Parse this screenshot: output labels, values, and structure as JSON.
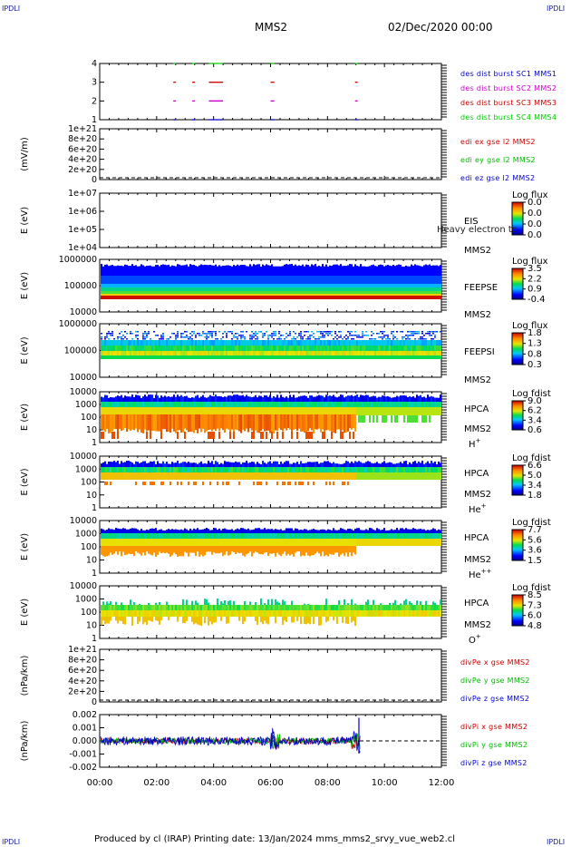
{
  "header": {
    "corner_tl": "IPDLI",
    "corner_tr": "IPDLI",
    "corner_bl": "IPDLI",
    "corner_br": "IPDLI",
    "spacecraft": "MMS2",
    "datetime": "02/Dec/2020 00:00"
  },
  "footer": {
    "text": "Produced by cl (IRAP)   Printing date: 13/Jan/2024   mms_mms2_srvy_vue_web2.cl"
  },
  "colors": {
    "mms1": "#0000cc",
    "mms2": "#cc00cc",
    "mms3": "#cc0000",
    "mms4": "#00cc00",
    "x": "#cc0000",
    "y": "#00bb00",
    "z": "#0000cc"
  },
  "chart_data": [
    {
      "id": "burst",
      "type": "scatter",
      "ylabel": "",
      "yticks": [
        "1",
        "2",
        "3",
        "4"
      ],
      "xlim": [
        "00:00",
        "12:00"
      ],
      "legend": [
        {
          "text": "des dist burst SC1 MMS1",
          "color": "#0000cc"
        },
        {
          "text": "des dist burst SC2 MMS2",
          "color": "#cc00cc"
        },
        {
          "text": "des dist burst SC3 MMS3",
          "color": "#cc0000"
        },
        {
          "text": "des dist burst SC4 MMS4",
          "color": "#00cc00"
        }
      ],
      "series": [
        {
          "sc": 1,
          "segments": [
            [
              "02:35",
              "02:40"
            ],
            [
              "03:15",
              "03:18"
            ],
            [
              "03:50",
              "04:20"
            ],
            [
              "06:00",
              "06:08"
            ],
            [
              "08:58",
              "09:03"
            ]
          ]
        },
        {
          "sc": 2,
          "segments": [
            [
              "02:35",
              "02:40"
            ],
            [
              "03:15",
              "03:18"
            ],
            [
              "03:50",
              "04:20"
            ],
            [
              "06:00",
              "06:08"
            ],
            [
              "08:58",
              "09:03"
            ]
          ]
        },
        {
          "sc": 3,
          "segments": [
            [
              "02:35",
              "02:40"
            ],
            [
              "03:15",
              "03:18"
            ],
            [
              "03:50",
              "04:20"
            ],
            [
              "06:00",
              "06:08"
            ],
            [
              "08:58",
              "09:03"
            ]
          ]
        },
        {
          "sc": 4,
          "segments": [
            [
              "02:35",
              "02:40"
            ],
            [
              "03:15",
              "03:18"
            ],
            [
              "03:50",
              "04:20"
            ],
            [
              "06:00",
              "06:08"
            ],
            [
              "08:58",
              "09:03"
            ]
          ]
        }
      ]
    },
    {
      "id": "edi",
      "type": "line",
      "ylabel": "(mV/m)",
      "yticks": [
        "1e+21",
        "8e+20",
        "6e+20",
        "4e+20",
        "2e+20",
        "0"
      ],
      "legend": [
        {
          "text": "edi ex gse l2 MMS2",
          "color": "#cc0000"
        },
        {
          "text": "edi ey gse l2 MMS2",
          "color": "#00bb00"
        },
        {
          "text": "edi ez gse l2 MMS2",
          "color": "#0000cc"
        }
      ]
    },
    {
      "id": "eis",
      "type": "heatmap",
      "ylabel": "E (eV)",
      "yticks": [
        "1e+07",
        "1e+06",
        "1e+05",
        "1e+04"
      ],
      "instrument": "EIS",
      "sc": "MMS2",
      "overlay": "Heavy electron to",
      "cbar_title": "Log flux",
      "cbar_ticks": [
        "0.0",
        "0.0",
        "0.0",
        "0.0"
      ]
    },
    {
      "id": "feepse",
      "type": "heatmap",
      "ylabel": "E (eV)",
      "yticks": [
        "1000000",
        "100000",
        "10000"
      ],
      "instrument": "FEEPSE",
      "sc": "MMS2",
      "cbar_title": "Log flux",
      "cbar_ticks": [
        "3.5",
        "2.2",
        "0.9",
        "-0.4"
      ],
      "data_end": "12:00"
    },
    {
      "id": "feepsi",
      "type": "heatmap",
      "ylabel": "E (eV)",
      "yticks": [
        "1000000",
        "100000",
        "10000"
      ],
      "instrument": "FEEPSI",
      "sc": "MMS2",
      "cbar_title": "Log flux",
      "cbar_ticks": [
        "1.8",
        "1.3",
        "0.8",
        "0.3"
      ],
      "data_end": "12:00"
    },
    {
      "id": "hpca_h",
      "type": "heatmap",
      "ylabel": "E (eV)",
      "yticks": [
        "10000",
        "1000",
        "100",
        "10",
        "1"
      ],
      "instrument": "HPCA",
      "sc": "MMS2",
      "species": "H",
      "charge": "+",
      "cbar_title": "Log fdist",
      "cbar_ticks": [
        "9.0",
        "6.2",
        "3.4",
        "0.6"
      ],
      "data_end": "12:00"
    },
    {
      "id": "hpca_he",
      "type": "heatmap",
      "ylabel": "E (eV)",
      "yticks": [
        "10000",
        "1000",
        "100",
        "10",
        "1"
      ],
      "instrument": "HPCA",
      "sc": "MMS2",
      "species": "He",
      "charge": "+",
      "cbar_title": "Log fdist",
      "cbar_ticks": [
        "6.6",
        "5.0",
        "3.4",
        "1.8"
      ],
      "data_end": "12:00"
    },
    {
      "id": "hpca_he2",
      "type": "heatmap",
      "ylabel": "E (eV)",
      "yticks": [
        "10000",
        "1000",
        "100",
        "10",
        "1"
      ],
      "instrument": "HPCA",
      "sc": "MMS2",
      "species": "He",
      "charge": "++",
      "cbar_title": "Log fdist",
      "cbar_ticks": [
        "7.7",
        "5.6",
        "3.6",
        "1.5"
      ],
      "data_end": "12:00"
    },
    {
      "id": "hpca_o",
      "type": "heatmap",
      "ylabel": "E (eV)",
      "yticks": [
        "10000",
        "1000",
        "100",
        "10",
        "1"
      ],
      "instrument": "HPCA",
      "sc": "MMS2",
      "species": "O",
      "charge": "+",
      "cbar_title": "Log fdist",
      "cbar_ticks": [
        "8.5",
        "7.3",
        "6.0",
        "4.8"
      ],
      "data_end": "12:00"
    },
    {
      "id": "divpe",
      "type": "line",
      "ylabel": "(nPa/km)",
      "yticks": [
        "1e+21",
        "8e+20",
        "6e+20",
        "4e+20",
        "2e+20",
        "0"
      ],
      "legend": [
        {
          "text": "divPe x gse MMS2",
          "color": "#cc0000"
        },
        {
          "text": "divPe y gse MMS2",
          "color": "#00bb00"
        },
        {
          "text": "divPe z gse MMS2",
          "color": "#0000cc"
        }
      ]
    },
    {
      "id": "divpi",
      "type": "line",
      "ylabel": "(nPa/km)",
      "yticks": [
        "0.002",
        "0.001",
        "0.000",
        "-0.001",
        "-0.002"
      ],
      "ylim": [
        -0.0025,
        0.0025
      ],
      "data_end": "09:10",
      "legend": [
        {
          "text": "divPi x gse MMS2",
          "color": "#cc0000"
        },
        {
          "text": "divPi y gse MMS2",
          "color": "#00bb00"
        },
        {
          "text": "divPi z gse MMS2",
          "color": "#0000cc"
        }
      ]
    }
  ],
  "xaxis": {
    "ticks": [
      "00:00",
      "02:00",
      "04:00",
      "06:00",
      "08:00",
      "10:00",
      "12:00"
    ]
  }
}
